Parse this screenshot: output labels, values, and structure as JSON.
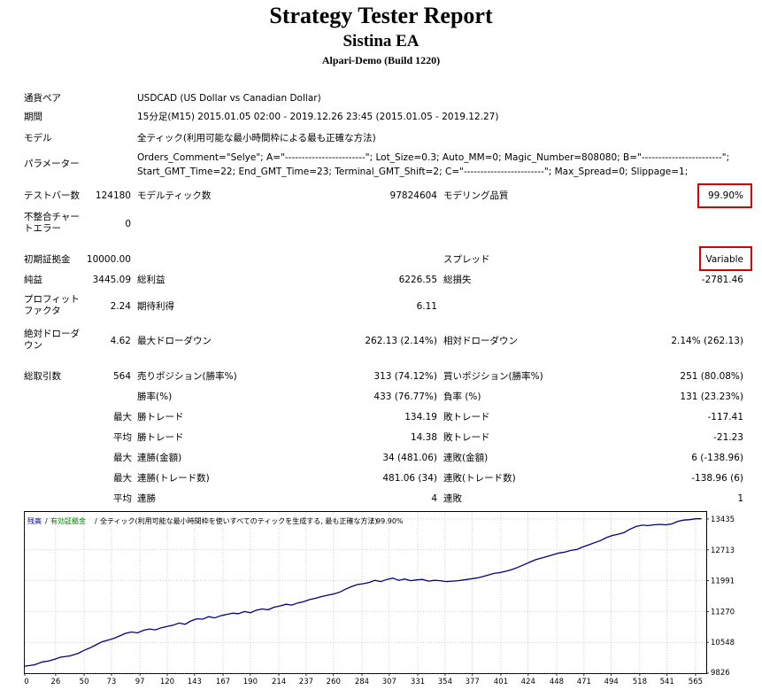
{
  "header": {
    "title": "Strategy Tester Report",
    "subtitle": "Sistina EA",
    "build": "Alpari-Demo (Build 1220)"
  },
  "settings": {
    "symbol_label": "通貨ペア",
    "symbol_value": "USDCAD (US Dollar vs Canadian Dollar)",
    "period_label": "期間",
    "period_value": "15分足(M15) 2015.01.05 02:00 - 2019.12.26 23:45 (2015.01.05 - 2019.12.27)",
    "model_label": "モデル",
    "model_value": "全ティック(利用可能な最小時間枠による最も正確な方法)",
    "params_label": "パラメーター",
    "params_line1": "Orders_Comment=\"Selye\"; A=\"------------------------\"; Lot_Size=0.3; Auto_MM=0; Magic_Number=808080; B=\"------------------------\";",
    "params_line2": "Start_GMT_Time=22; End_GMT_Time=23; Terminal_GMT_Shift=2; C=\"------------------------\"; Max_Spread=0; Slippage=1;"
  },
  "bars": {
    "bars_label": "テストバー数",
    "bars_value": "124180",
    "ticks_label": "モデルティック数",
    "ticks_value": "97824604",
    "quality_label": "モデリング品質",
    "quality_value": "99.90%",
    "mismatch_label": "不整合チャートエラー",
    "mismatch_value": "0"
  },
  "money": {
    "deposit_label": "初期証拠金",
    "deposit_value": "10000.00",
    "spread_label": "スプレッド",
    "spread_value": "Variable",
    "net_label": "純益",
    "net_value": "3445.09",
    "gross_profit_label": "総利益",
    "gross_profit_value": "6226.55",
    "gross_loss_label": "総損失",
    "gross_loss_value": "-2781.46",
    "pf_label": "プロフィットファクタ",
    "pf_value": "2.24",
    "expected_label": "期待利得",
    "expected_value": "6.11",
    "abs_dd_label": "絶対ドローダウン",
    "abs_dd_value": "4.62",
    "max_dd_label": "最大ドローダウン",
    "max_dd_value": "262.13 (2.14%)",
    "rel_dd_label": "相対ドローダウン",
    "rel_dd_value": "2.14% (262.13)"
  },
  "trades": {
    "total_label": "総取引数",
    "total_value": "564",
    "short_label": "売りポジション(勝率%)",
    "short_value": "313 (74.12%)",
    "long_label": "買いポジション(勝率%)",
    "long_value": "251 (80.08%)",
    "profit_trades_label": "勝率(%)",
    "profit_trades_value": "433 (76.77%)",
    "loss_trades_label": "負率 (%)",
    "loss_trades_value": "131 (23.23%)",
    "max_word": "最大",
    "avg_word": "平均",
    "largest_profit_label": "勝トレード",
    "largest_profit_value": "134.19",
    "largest_loss_label": "敗トレード",
    "largest_loss_value": "-117.41",
    "avg_profit_label": "勝トレード",
    "avg_profit_value": "14.38",
    "avg_loss_label": "敗トレード",
    "avg_loss_value": "-21.23",
    "max_cons_wins_label": "連勝(金額)",
    "max_cons_wins_value": "34 (481.06)",
    "max_cons_losses_label": "連敗(金額)",
    "max_cons_losses_value": "6 (-138.96)",
    "max_cons_profit_label": "連勝(トレード数)",
    "max_cons_profit_value": "481.06 (34)",
    "max_cons_loss_label": "連敗(トレード数)",
    "max_cons_loss_value": "-138.96 (6)",
    "avg_cons_wins_label": "連勝",
    "avg_cons_wins_value": "4",
    "avg_cons_losses_label": "連敗",
    "avg_cons_losses_value": "1"
  },
  "chart_data": {
    "type": "line",
    "legend_balance": "残高",
    "legend_equity": "有効証拠金",
    "legend_text": "全ティック(利用可能な最小時間枠を使いすべてのティックを生成する, 最も正確な方法)",
    "legend_quality": "99.90%",
    "xticks": [
      0,
      26,
      50,
      73,
      97,
      120,
      143,
      167,
      190,
      214,
      237,
      260,
      284,
      307,
      331,
      354,
      377,
      401,
      424,
      448,
      471,
      494,
      518,
      541,
      565
    ],
    "yticks": [
      9826,
      10548,
      11270,
      11991,
      12713,
      13435
    ],
    "xlim": [
      0,
      574
    ],
    "ylim": [
      9826,
      13600
    ],
    "grid": true,
    "line_color": "#000080",
    "series": [
      {
        "x": [
          0,
          8,
          15,
          20,
          25,
          30,
          38,
          45,
          50,
          55,
          60,
          65,
          70,
          75,
          80,
          85,
          90,
          95,
          100,
          105,
          110,
          115,
          120,
          125,
          130,
          135,
          140,
          145,
          150,
          155,
          160,
          165,
          170,
          175,
          180,
          185,
          190,
          195,
          200,
          205,
          210,
          215,
          220,
          225,
          230,
          235,
          240,
          245,
          250,
          255,
          260,
          265,
          270,
          275,
          280,
          285,
          290,
          295,
          300,
          305,
          310,
          315,
          320,
          325,
          330,
          335,
          340,
          345,
          350,
          355,
          360,
          365,
          370,
          375,
          380,
          385,
          390,
          395,
          400,
          405,
          410,
          415,
          420,
          425,
          430,
          435,
          440,
          445,
          450,
          455,
          460,
          465,
          470,
          475,
          480,
          485,
          490,
          495,
          500,
          505,
          510,
          515,
          520,
          525,
          530,
          535,
          540,
          545,
          550,
          555,
          560,
          565,
          570
        ],
        "y": [
          9990,
          10020,
          10090,
          10110,
          10150,
          10200,
          10230,
          10290,
          10360,
          10420,
          10490,
          10560,
          10600,
          10640,
          10700,
          10760,
          10790,
          10770,
          10830,
          10860,
          10840,
          10890,
          10920,
          10950,
          11000,
          10970,
          11050,
          11100,
          11090,
          11150,
          11120,
          11170,
          11200,
          11230,
          11220,
          11270,
          11240,
          11300,
          11330,
          11310,
          11370,
          11400,
          11440,
          11420,
          11470,
          11500,
          11550,
          11580,
          11620,
          11650,
          11680,
          11720,
          11790,
          11850,
          11900,
          11920,
          11950,
          12000,
          11970,
          12020,
          12050,
          12000,
          12030,
          11990,
          12010,
          12020,
          11980,
          12000,
          11990,
          11970,
          11980,
          11990,
          12010,
          12030,
          12050,
          12080,
          12120,
          12160,
          12180,
          12210,
          12250,
          12300,
          12360,
          12420,
          12480,
          12520,
          12560,
          12600,
          12640,
          12660,
          12700,
          12720,
          12780,
          12830,
          12880,
          12930,
          13000,
          13050,
          13080,
          13120,
          13200,
          13260,
          13290,
          13280,
          13300,
          13310,
          13300,
          13320,
          13380,
          13410,
          13420,
          13440,
          13440
        ]
      }
    ]
  }
}
